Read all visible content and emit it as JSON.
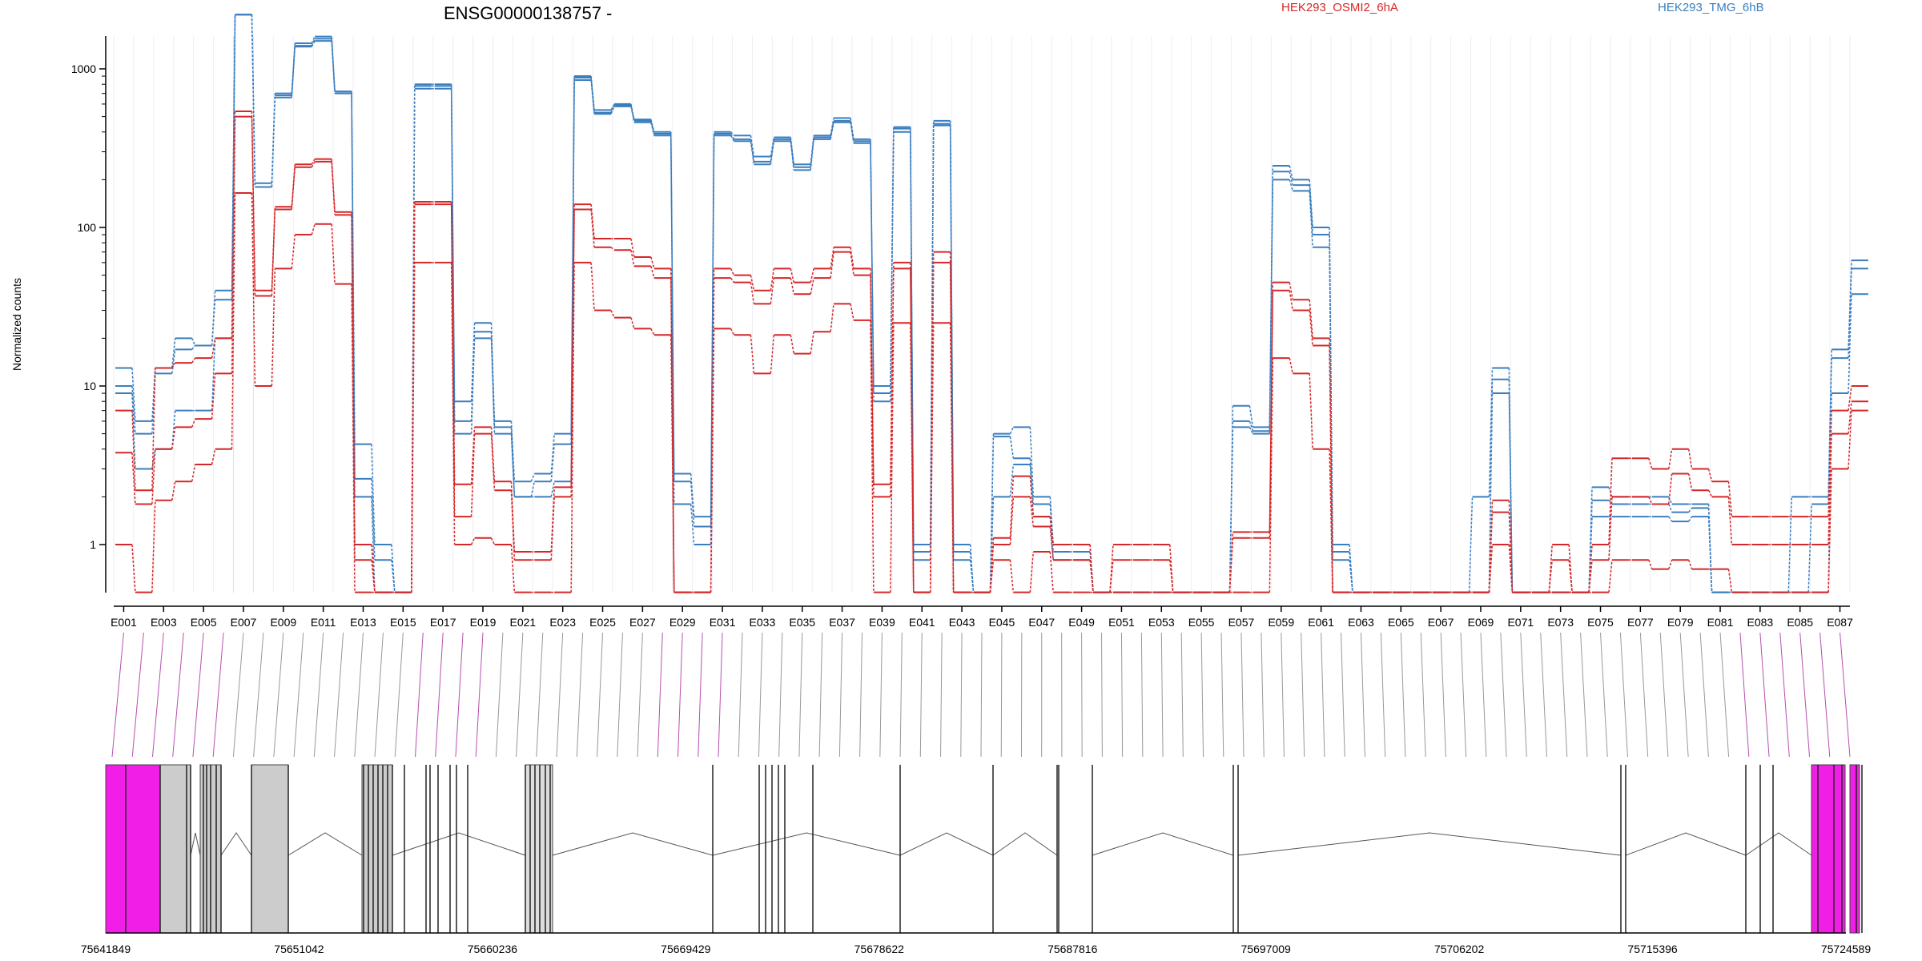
{
  "chart_data": {
    "type": "line",
    "title": "ENSG00000138757 -",
    "ylabel": "Normalized counts",
    "y_scale": "log",
    "y_ticks": [
      "1",
      "10",
      "100",
      "1000"
    ],
    "legend": [
      {
        "name": "HEK293_OSMI2_6hA",
        "color": "#d62728"
      },
      {
        "name": "HEK293_TMG_6hB",
        "color": "#3a7ebf"
      }
    ],
    "exon_labels": [
      "E001",
      "E003",
      "E005",
      "E007",
      "E009",
      "E011",
      "E013",
      "E015",
      "E017",
      "E019",
      "E021",
      "E023",
      "E025",
      "E027",
      "E029",
      "E031",
      "E033",
      "E035",
      "E037",
      "E039",
      "E041",
      "E043",
      "E045",
      "E047",
      "E049",
      "E051",
      "E053",
      "E055",
      "E057",
      "E059",
      "E061",
      "E063",
      "E065",
      "E067",
      "E069",
      "E071",
      "E073",
      "E075",
      "E077",
      "E079",
      "E081",
      "E083",
      "E085",
      "E087"
    ],
    "genomic_coordinates": [
      "75641849",
      "75651042",
      "75660236",
      "75669429",
      "75678622",
      "75687816",
      "75697009",
      "75706202",
      "75715396",
      "75724589"
    ],
    "series": [
      {
        "group": "HEK293_TMG_6hB",
        "color": "#3a7ebf",
        "values": [
          13,
          6,
          13,
          20,
          18,
          40,
          2200,
          190,
          700,
          1450,
          1600,
          720,
          4.3,
          1,
          0.5,
          800,
          800,
          8,
          25,
          6,
          2.5,
          2.8,
          5,
          900,
          550,
          600,
          480,
          400,
          2.8,
          1.5,
          400,
          380,
          280,
          370,
          250,
          380,
          490,
          360,
          10,
          430,
          1,
          470,
          1,
          0.5,
          5,
          5.5,
          2,
          1,
          1,
          0.5,
          0.5,
          0.5,
          0.5,
          0.5,
          0.5,
          0.5,
          7.5,
          5.5,
          245,
          200,
          100,
          1,
          0.5,
          0.5,
          0.5,
          0.5,
          0.5,
          0.5,
          2,
          13,
          0.5,
          0.5,
          0.5,
          0.5,
          2.3,
          2,
          2,
          2,
          1.8,
          1.8,
          0.5,
          0.5,
          0.5,
          0.5,
          2,
          2,
          17,
          62
        ]
      },
      {
        "group": "HEK293_TMG_6hB",
        "color": "#3a7ebf",
        "values": [
          10,
          5,
          12,
          17,
          18,
          35,
          2200,
          180,
          680,
          1400,
          1550,
          720,
          2.6,
          0.8,
          0.5,
          780,
          780,
          6,
          22,
          5.5,
          2,
          2.5,
          4.3,
          880,
          530,
          590,
          470,
          390,
          2.5,
          1.3,
          390,
          360,
          260,
          360,
          240,
          370,
          470,
          350,
          9,
          420,
          0.9,
          450,
          0.9,
          0.5,
          4.8,
          3.5,
          1.8,
          0.9,
          0.9,
          0.5,
          0.5,
          0.5,
          0.5,
          0.5,
          0.5,
          0.5,
          6,
          5.2,
          225,
          185,
          90,
          0.9,
          0.5,
          0.5,
          0.5,
          0.5,
          0.5,
          0.5,
          0.5,
          11,
          0.5,
          0.5,
          0.5,
          0.5,
          1.9,
          1.8,
          1.8,
          1.8,
          1.6,
          1.7,
          0.5,
          0.5,
          0.5,
          0.5,
          0.5,
          1.8,
          15,
          55
        ]
      },
      {
        "group": "HEK293_TMG_6hB",
        "color": "#3a7ebf",
        "values": [
          9,
          3,
          4,
          7,
          7,
          20,
          2200,
          180,
          660,
          1380,
          1500,
          700,
          2,
          0.5,
          0.5,
          750,
          750,
          5,
          20,
          5,
          2,
          2,
          2.5,
          850,
          520,
          580,
          460,
          380,
          1.8,
          1,
          380,
          350,
          250,
          350,
          230,
          360,
          460,
          340,
          8,
          400,
          0.8,
          440,
          0.8,
          0.5,
          2,
          3.2,
          1.5,
          0.8,
          0.8,
          0.5,
          0.5,
          0.5,
          0.5,
          0.5,
          0.5,
          0.5,
          5.5,
          5,
          200,
          170,
          75,
          0.8,
          0.5,
          0.5,
          0.5,
          0.5,
          0.5,
          0.5,
          0.5,
          9,
          0.5,
          0.5,
          0.5,
          0.5,
          1.5,
          1.5,
          1.5,
          1.5,
          1.4,
          1.5,
          0.5,
          0.5,
          0.5,
          0.5,
          0.5,
          0.5,
          9,
          38
        ]
      },
      {
        "group": "HEK293_OSMI2_6hA",
        "color": "#d62728",
        "values": [
          7,
          2.2,
          13,
          14,
          15,
          20,
          540,
          40,
          135,
          250,
          270,
          125,
          1,
          0.5,
          0.5,
          145,
          145,
          2.4,
          5.5,
          2.5,
          0.9,
          0.9,
          2.3,
          140,
          85,
          85,
          65,
          55,
          0.5,
          0.5,
          55,
          50,
          40,
          55,
          45,
          55,
          75,
          55,
          2.4,
          60,
          0.5,
          70,
          0.5,
          0.5,
          1.1,
          2.7,
          1.5,
          1,
          1,
          0.5,
          1,
          1,
          1,
          0.5,
          0.5,
          0.5,
          1.2,
          1.2,
          45,
          35,
          20,
          0.5,
          0.5,
          0.5,
          0.5,
          0.5,
          0.5,
          0.5,
          0.5,
          1.9,
          0.5,
          0.5,
          1,
          0.5,
          1,
          3.5,
          3.5,
          3,
          4,
          3,
          2.5,
          1.5,
          1.5,
          1.5,
          1.5,
          1.5,
          7,
          10
        ]
      },
      {
        "group": "HEK293_OSMI2_6hA",
        "color": "#d62728",
        "values": [
          3.8,
          1.8,
          4,
          5.5,
          6.2,
          12,
          500,
          37,
          130,
          240,
          260,
          120,
          0.8,
          0.5,
          0.5,
          140,
          140,
          1.5,
          5,
          2.2,
          0.8,
          0.8,
          2,
          130,
          75,
          72,
          57,
          48,
          0.5,
          0.5,
          48,
          45,
          33,
          48,
          38,
          48,
          70,
          50,
          2,
          55,
          0.5,
          60,
          0.5,
          0.5,
          1,
          2,
          1.3,
          0.8,
          0.8,
          0.5,
          0.8,
          0.8,
          0.8,
          0.5,
          0.5,
          0.5,
          1.1,
          1.1,
          40,
          30,
          18,
          0.5,
          0.5,
          0.5,
          0.5,
          0.5,
          0.5,
          0.5,
          0.5,
          1.6,
          0.5,
          0.5,
          0.8,
          0.5,
          0.8,
          2,
          2,
          1.8,
          2.8,
          2.2,
          2,
          1,
          1,
          1,
          1,
          1,
          5,
          8
        ]
      },
      {
        "group": "HEK293_OSMI2_6hA",
        "color": "#d62728",
        "values": [
          1,
          0.5,
          1.9,
          2.5,
          3.2,
          4,
          165,
          10,
          55,
          90,
          105,
          44,
          0.5,
          0.5,
          0.5,
          60,
          60,
          1,
          1.1,
          1,
          0.5,
          0.5,
          0.5,
          60,
          30,
          27,
          23,
          21,
          0.5,
          0.5,
          23,
          21,
          12,
          21,
          16,
          22,
          33,
          26,
          0.5,
          25,
          0.5,
          25,
          0.5,
          0.5,
          0.8,
          0.5,
          0.9,
          0.5,
          0.5,
          0.5,
          0.5,
          0.5,
          0.5,
          0.5,
          0.5,
          0.5,
          0.5,
          0.5,
          15,
          12,
          4,
          0.5,
          0.5,
          0.5,
          0.5,
          0.5,
          0.5,
          0.5,
          0.5,
          1,
          0.5,
          0.5,
          0.5,
          0.5,
          0.5,
          0.8,
          0.8,
          0.7,
          0.8,
          0.7,
          0.7,
          0.5,
          0.5,
          0.5,
          0.5,
          0.5,
          3,
          7
        ]
      }
    ]
  }
}
